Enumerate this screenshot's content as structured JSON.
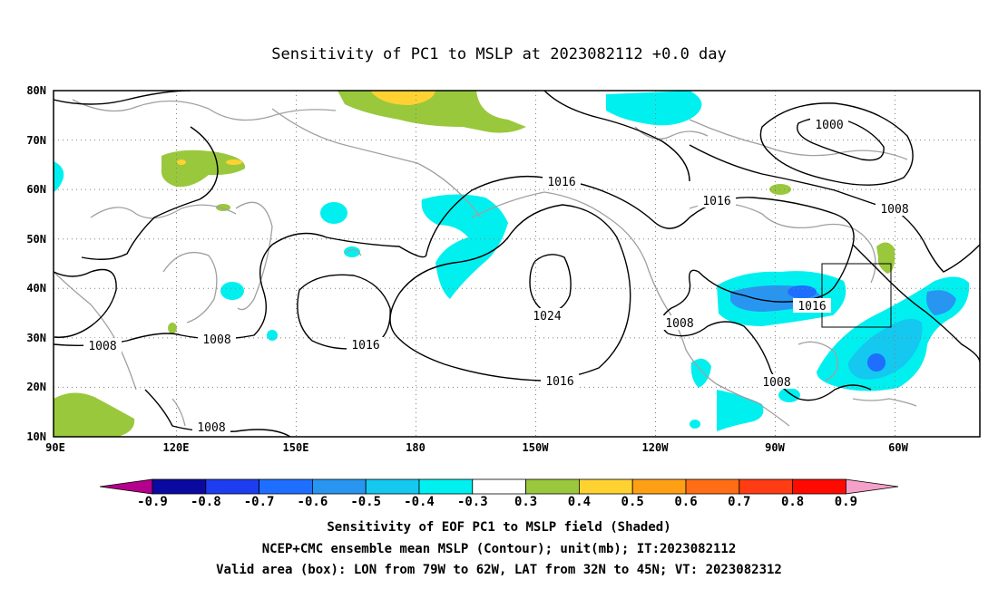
{
  "title": "Sensitivity of PC1 to MSLP at 2023082112 +0.0 day",
  "lat_labels": [
    "80N",
    "70N",
    "60N",
    "50N",
    "40N",
    "30N",
    "20N",
    "10N"
  ],
  "lon_labels": [
    "90E",
    "120E",
    "150E",
    "180",
    "150W",
    "120W",
    "90W",
    "60W"
  ],
  "contour_labels": {
    "l1000": "1000",
    "l1008_ne": "1008",
    "l1016_n": "1016",
    "l1016_ne": "1016",
    "l1024": "1024",
    "l1016_c": "1016",
    "l1016_s": "1016",
    "l1008_w": "1008",
    "l1008_wj": "1008",
    "l1008_sw": "1008",
    "l1008_mx": "1008",
    "l1008_car": "1008",
    "l1016_us": "1016"
  },
  "colorbar": {
    "ticks": [
      "-0.9",
      "-0.8",
      "-0.7",
      "-0.6",
      "-0.5",
      "-0.4",
      "-0.3",
      "0.3",
      "0.4",
      "0.5",
      "0.6",
      "0.7",
      "0.8",
      "0.9"
    ],
    "colors": [
      "#0a0aa0",
      "#1e3cf0",
      "#1e6eff",
      "#2896f0",
      "#14c8f0",
      "#00f0f0",
      "#ffffff",
      "#9ac83c",
      "#ffd232",
      "#ffa014",
      "#ff6e14",
      "#ff3c14",
      "#ff0a00"
    ],
    "low_end": "#b4008c",
    "high_end": "#f5a0c8"
  },
  "footer": {
    "line1": "Sensitivity of EOF PC1 to MSLP field (Shaded)",
    "line2": "NCEP+CMC ensemble mean MSLP (Contour); unit(mb); IT:2023082112",
    "line3": "Valid area (box): LON from 79W to 62W, LAT from 32N to 45N; VT: 2023082312"
  }
}
